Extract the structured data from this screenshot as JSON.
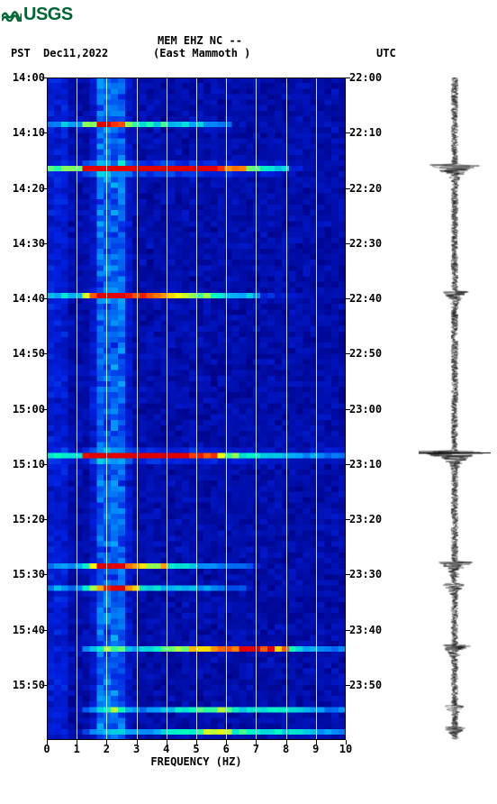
{
  "logo": {
    "text": "USGS",
    "color": "#006633"
  },
  "header": {
    "station": "MEM EHZ NC --",
    "location": "(East Mammoth )",
    "tz_left": "PST",
    "date": "Dec11,2022",
    "tz_right": "UTC"
  },
  "spectrogram": {
    "type": "spectrogram",
    "xlabel": "FREQUENCY (HZ)",
    "xlim": [
      0,
      10
    ],
    "xticks": [
      0,
      1,
      2,
      3,
      4,
      5,
      6,
      7,
      8,
      9,
      10
    ],
    "y_left_ticks": [
      "14:00",
      "14:10",
      "14:20",
      "14:30",
      "14:40",
      "14:50",
      "15:00",
      "15:10",
      "15:20",
      "15:30",
      "15:40",
      "15:50"
    ],
    "y_right_ticks": [
      "22:00",
      "22:10",
      "22:20",
      "22:30",
      "22:40",
      "22:50",
      "23:00",
      "23:10",
      "23:20",
      "23:30",
      "23:40",
      "23:50"
    ],
    "y_span_minutes": 120,
    "grid_color": "#ffffff",
    "colormap": {
      "low": "#000080",
      "mid_low": "#0020e0",
      "mid": "#00a0ff",
      "mid_high": "#00ffc0",
      "high": "#ffff00",
      "peak": "#ff4000",
      "max": "#e00000"
    },
    "background_band_hz": [
      1.6,
      2.4
    ],
    "events": [
      {
        "time_min_from_start": 16,
        "freq_peak": 3.0,
        "intensity": 0.95,
        "width_hz": 8,
        "thickness": 2
      },
      {
        "time_min_from_start": 8,
        "freq_peak": 3.0,
        "intensity": 0.55,
        "width_hz": 2,
        "thickness": 1
      },
      {
        "time_min_from_start": 39,
        "freq_peak": 3.0,
        "intensity": 0.6,
        "width_hz": 7,
        "thickness": 1
      },
      {
        "time_min_from_start": 68,
        "freq_peak": 3.0,
        "intensity": 0.8,
        "width_hz": 10,
        "thickness": 2
      },
      {
        "time_min_from_start": 88,
        "freq_peak": 3.0,
        "intensity": 0.55,
        "width_hz": 4,
        "thickness": 1
      },
      {
        "time_min_from_start": 92,
        "freq_peak": 3.0,
        "intensity": 0.5,
        "width_hz": 3,
        "thickness": 1
      },
      {
        "time_min_from_start": 103,
        "freq_peak": 6.5,
        "intensity": 0.65,
        "width_hz": 8,
        "thickness": 1
      },
      {
        "time_min_from_start": 114,
        "freq_peak": 7.0,
        "intensity": 0.55,
        "width_hz": 6,
        "thickness": 1
      },
      {
        "time_min_from_start": 118,
        "freq_peak": 7.0,
        "intensity": 0.55,
        "width_hz": 6,
        "thickness": 1
      }
    ],
    "cell_rows": 120,
    "cell_cols": 42
  },
  "seismogram": {
    "color": "#000000",
    "baseline_amplitude": 4,
    "events": [
      {
        "time_min": 16,
        "amplitude": 38,
        "duration": 6
      },
      {
        "time_min": 39,
        "amplitude": 14,
        "duration": 2
      },
      {
        "time_min": 68,
        "amplitude": 40,
        "duration": 3,
        "marker_line": true
      },
      {
        "time_min": 88,
        "amplitude": 18,
        "duration": 3
      },
      {
        "time_min": 92,
        "amplitude": 10,
        "duration": 2
      },
      {
        "time_min": 103,
        "amplitude": 16,
        "duration": 2
      },
      {
        "time_min": 114,
        "amplitude": 8,
        "duration": 1
      },
      {
        "time_min": 118,
        "amplitude": 8,
        "duration": 1
      }
    ]
  }
}
